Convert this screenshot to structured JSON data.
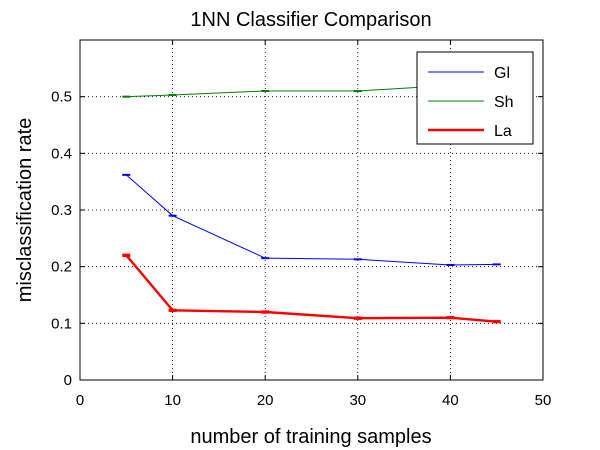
{
  "chart_data": {
    "type": "line",
    "title": "1NN Classifier Comparison",
    "xlabel": "number of training samples",
    "ylabel": "misclassification rate",
    "xlim": [
      0,
      50
    ],
    "ylim": [
      0,
      0.6
    ],
    "xticks": [
      0,
      10,
      20,
      30,
      40,
      50
    ],
    "xtick_labels": [
      "0",
      "10",
      "20",
      "30",
      "40",
      "50"
    ],
    "yticks": [
      0,
      0.1,
      0.2,
      0.3,
      0.4,
      0.5
    ],
    "ytick_labels": [
      "0",
      "0.1",
      "0.2",
      "0.3",
      "0.4",
      "0.5"
    ],
    "grid": true,
    "legend_position": "top-right",
    "series": [
      {
        "name": "Gl",
        "color": "#0000ff",
        "x": [
          5,
          10,
          20,
          30,
          40,
          45
        ],
        "y": [
          0.362,
          0.29,
          0.215,
          0.213,
          0.203,
          0.204
        ]
      },
      {
        "name": "Sh",
        "color": "#008000",
        "x": [
          5,
          10,
          20,
          30,
          40,
          45
        ],
        "y": [
          0.5,
          0.503,
          0.51,
          0.51,
          0.52,
          0.525
        ]
      },
      {
        "name": "La",
        "color": "#ff0000",
        "x": [
          5,
          10,
          20,
          30,
          40,
          45
        ],
        "y": [
          0.22,
          0.123,
          0.12,
          0.109,
          0.11,
          0.103
        ]
      }
    ]
  }
}
